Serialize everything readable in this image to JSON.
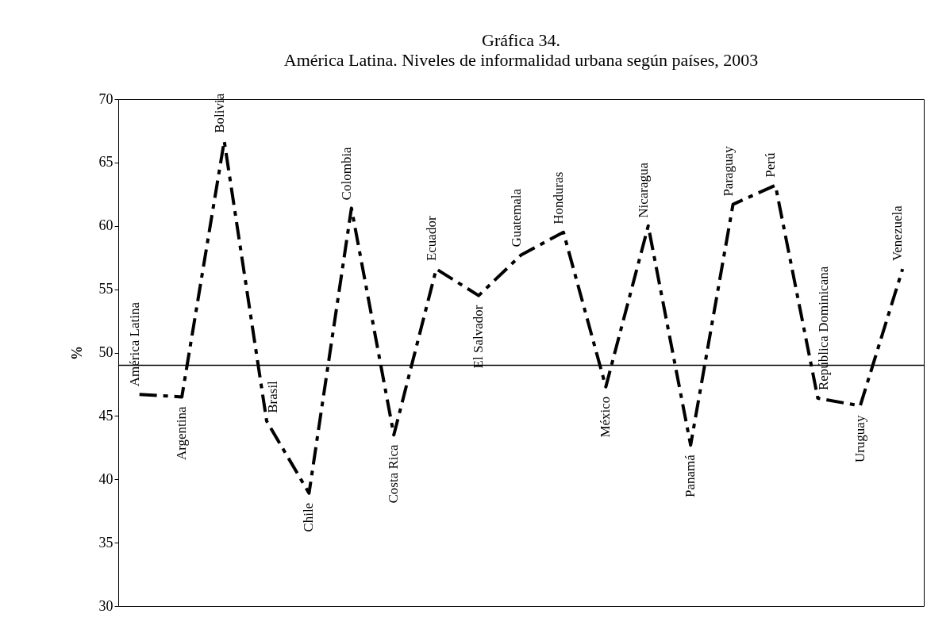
{
  "chart_data": {
    "type": "line",
    "title": "Gráfica 34.",
    "subtitle": "América Latina. Niveles de informalidad urbana según países, 2003",
    "ylabel": "%",
    "categories": [
      "América Latina",
      "Argentina",
      "Bolivia",
      "Brasil",
      "Chile",
      "Colombia",
      "Costa Rica",
      "Ecuador",
      "El Salvador",
      "Guatemala",
      "Honduras",
      "México",
      "Nicaragua",
      "Panamá",
      "Paraguay",
      "Perú",
      "República Dominicana",
      "Uruguay",
      "Venezuela"
    ],
    "series": [
      {
        "color": "#000000",
        "values": [
          46.7,
          46.5,
          66.7,
          44.6,
          38.9,
          61.4,
          43.5,
          56.6,
          54.5,
          57.7,
          59.5,
          47.3,
          60.0,
          42.7,
          61.7,
          63.2,
          46.4,
          45.8,
          56.6
        ]
      }
    ],
    "ylim": [
      30,
      70
    ],
    "yticks": [
      30,
      35,
      40,
      45,
      50,
      55,
      60,
      65,
      70
    ],
    "ref_lines": [
      {
        "axis": "y",
        "value": 49,
        "color": "#000000"
      }
    ],
    "line_style": "dashed",
    "grid": false,
    "legend": false,
    "tick_labels": "y"
  }
}
